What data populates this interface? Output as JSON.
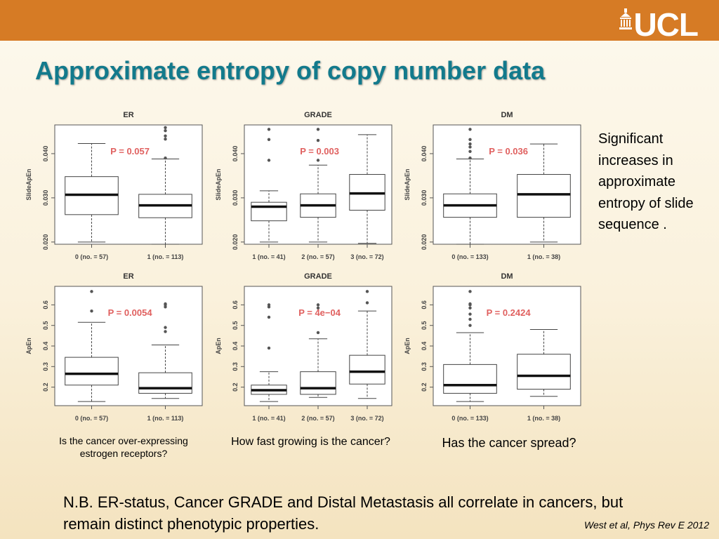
{
  "header": {
    "logo_text": "UCL",
    "title": "Approximate entropy of copy number data",
    "bar_color": "#d67b25",
    "title_color": "#127a8c"
  },
  "side_note": "Significant increases in approximate entropy of slide sequence .",
  "captions": [
    "Is the cancer over-expressing estrogen receptors?",
    "How fast growing is the cancer?",
    "Has the cancer spread?"
  ],
  "footnote": "N.B. ER-status, Cancer GRADE and Distal Metastasis all correlate in cancers, but remain distinct phenotypic properties.",
  "citation": "West et al, Phys Rev E 2012",
  "chart_data": [
    {
      "type": "boxplot",
      "title": "ER",
      "ylabel": "SlideApEn",
      "ylim": [
        0.0195,
        0.0465
      ],
      "yticks": [
        0.02,
        0.03,
        0.04
      ],
      "ytick_labels": [
        "0.020",
        "0.030",
        "0.040"
      ],
      "pvalue": "P = 0.057",
      "categories": [
        "0 (no. = 57)",
        "1 (no. = 113)"
      ],
      "boxes": [
        {
          "whislo": 0.02,
          "q1": 0.0262,
          "med": 0.0307,
          "q3": 0.0348,
          "whishi": 0.0423,
          "fliers": []
        },
        {
          "whislo": 0.0195,
          "q1": 0.0255,
          "med": 0.0283,
          "q3": 0.0308,
          "whishi": 0.0388,
          "fliers": [
            0.039,
            0.0433,
            0.044,
            0.0452,
            0.0459
          ]
        }
      ]
    },
    {
      "type": "boxplot",
      "title": "GRADE",
      "ylabel": "SlideApEn",
      "ylim": [
        0.0195,
        0.0465
      ],
      "yticks": [
        0.02,
        0.03,
        0.04
      ],
      "ytick_labels": [
        "0.020",
        "0.030",
        "0.040"
      ],
      "pvalue": "P = 0.003",
      "categories": [
        "1 (no. = 41)",
        "2 (no. = 57)",
        "3 (no. = 72)"
      ],
      "boxes": [
        {
          "whislo": 0.02,
          "q1": 0.0248,
          "med": 0.028,
          "q3": 0.029,
          "whishi": 0.0316,
          "fliers": [
            0.0385,
            0.0432,
            0.0455
          ]
        },
        {
          "whislo": 0.02,
          "q1": 0.0256,
          "med": 0.0283,
          "q3": 0.0309,
          "whishi": 0.0374,
          "fliers": [
            0.0385,
            0.043,
            0.0455
          ]
        },
        {
          "whislo": 0.0197,
          "q1": 0.0272,
          "med": 0.031,
          "q3": 0.0353,
          "whishi": 0.0443,
          "fliers": []
        }
      ]
    },
    {
      "type": "boxplot",
      "title": "DM",
      "ylabel": "SlideApEn",
      "ylim": [
        0.0195,
        0.0465
      ],
      "yticks": [
        0.02,
        0.03,
        0.04
      ],
      "ytick_labels": [
        "0.020",
        "0.030",
        "0.040"
      ],
      "pvalue": "P = 0.036",
      "categories": [
        "0 (no. = 133)",
        "1 (no. = 38)"
      ],
      "boxes": [
        {
          "whislo": 0.0195,
          "q1": 0.0256,
          "med": 0.0283,
          "q3": 0.0309,
          "whishi": 0.0388,
          "fliers": [
            0.039,
            0.0405,
            0.0415,
            0.0422,
            0.0432,
            0.0455
          ]
        },
        {
          "whislo": 0.02,
          "q1": 0.0256,
          "med": 0.0308,
          "q3": 0.0353,
          "whishi": 0.0422,
          "fliers": []
        }
      ]
    },
    {
      "type": "boxplot",
      "title": "ER",
      "ylabel": "ApEn",
      "ylim": [
        0.11,
        0.69
      ],
      "yticks": [
        0.2,
        0.3,
        0.4,
        0.5,
        0.6
      ],
      "ytick_labels": [
        "0.2",
        "0.3",
        "0.4",
        "0.5",
        "0.6"
      ],
      "pvalue": "P = 0.0054",
      "categories": [
        "0 (no. = 57)",
        "1 (no. = 113)"
      ],
      "boxes": [
        {
          "whislo": 0.13,
          "q1": 0.21,
          "med": 0.265,
          "q3": 0.345,
          "whishi": 0.515,
          "fliers": [
            0.57,
            0.665
          ]
        },
        {
          "whislo": 0.145,
          "q1": 0.17,
          "med": 0.195,
          "q3": 0.27,
          "whishi": 0.405,
          "fliers": [
            0.47,
            0.49,
            0.59,
            0.6,
            0.605
          ]
        }
      ]
    },
    {
      "type": "boxplot",
      "title": "GRADE",
      "ylabel": "ApEn",
      "ylim": [
        0.11,
        0.69
      ],
      "yticks": [
        0.2,
        0.3,
        0.4,
        0.5,
        0.6
      ],
      "ytick_labels": [
        "0.2",
        "0.3",
        "0.4",
        "0.5",
        "0.6"
      ],
      "pvalue": "P = 4e−04",
      "categories": [
        "1 (no. = 41)",
        "2 (no. = 57)",
        "3 (no. = 72)"
      ],
      "boxes": [
        {
          "whislo": 0.13,
          "q1": 0.165,
          "med": 0.185,
          "q3": 0.21,
          "whishi": 0.275,
          "fliers": [
            0.39,
            0.54,
            0.59,
            0.6
          ]
        },
        {
          "whislo": 0.15,
          "q1": 0.165,
          "med": 0.195,
          "q3": 0.275,
          "whishi": 0.435,
          "fliers": [
            0.465,
            0.585,
            0.6
          ]
        },
        {
          "whislo": 0.145,
          "q1": 0.215,
          "med": 0.275,
          "q3": 0.355,
          "whishi": 0.57,
          "fliers": [
            0.61,
            0.665
          ]
        }
      ]
    },
    {
      "type": "boxplot",
      "title": "DM",
      "ylabel": "ApEn",
      "ylim": [
        0.11,
        0.69
      ],
      "yticks": [
        0.2,
        0.3,
        0.4,
        0.5,
        0.6
      ],
      "ytick_labels": [
        "0.2",
        "0.3",
        "0.4",
        "0.5",
        "0.6"
      ],
      "pvalue": "P = 0.2424",
      "categories": [
        "0 (no. = 133)",
        "1 (no. = 38)"
      ],
      "boxes": [
        {
          "whislo": 0.13,
          "q1": 0.17,
          "med": 0.21,
          "q3": 0.31,
          "whishi": 0.465,
          "fliers": [
            0.5,
            0.53,
            0.555,
            0.585,
            0.6,
            0.605,
            0.665
          ]
        },
        {
          "whislo": 0.155,
          "q1": 0.19,
          "med": 0.255,
          "q3": 0.36,
          "whishi": 0.48,
          "fliers": []
        }
      ]
    }
  ]
}
